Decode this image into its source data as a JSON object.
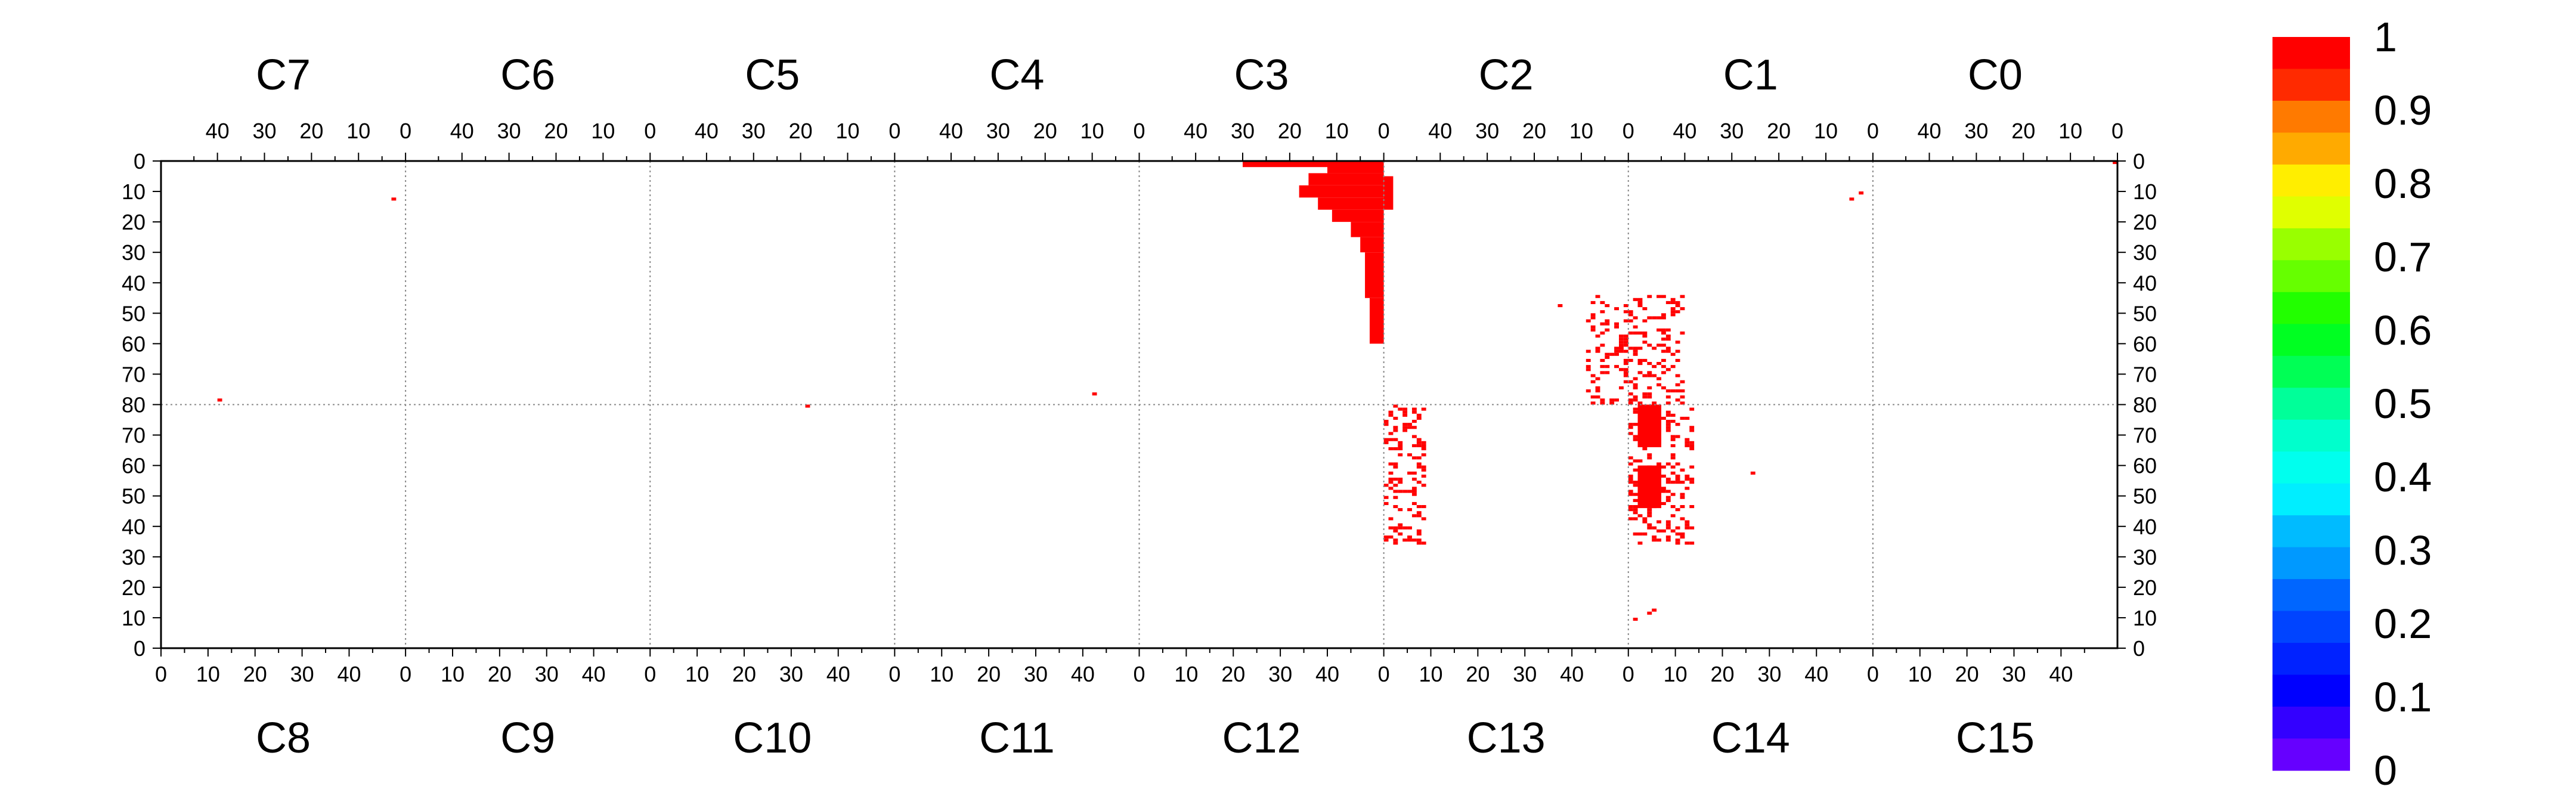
{
  "chart_data": {
    "type": "heatmap",
    "title": "",
    "chips_top": [
      "C7",
      "C6",
      "C5",
      "C4",
      "C3",
      "C2",
      "C1",
      "C0"
    ],
    "chips_bottom": [
      "C8",
      "C9",
      "C10",
      "C11",
      "C12",
      "C13",
      "C14",
      "C15"
    ],
    "top_tick_labels": [
      "40",
      "30",
      "20",
      "10",
      "0"
    ],
    "bottom_tick_labels": [
      "0",
      "10",
      "20",
      "30",
      "40"
    ],
    "y_tick_labels": [
      "0",
      "10",
      "20",
      "30",
      "40",
      "50",
      "60",
      "70",
      "80",
      "70",
      "60",
      "50",
      "40",
      "30",
      "20",
      "10",
      "0"
    ],
    "columns_per_chip": 52,
    "rows_per_half": 80,
    "colorbar": {
      "min": 0,
      "max": 1,
      "labels": [
        "1",
        "0.9",
        "0.8",
        "0.7",
        "0.6",
        "0.5",
        "0.4",
        "0.3",
        "0.2",
        "0.1",
        "0"
      ],
      "colors": [
        "#ff0000",
        "#ff2a00",
        "#ff7a00",
        "#ffaa00",
        "#ffee00",
        "#e0ff00",
        "#99ff00",
        "#66ff00",
        "#22ff00",
        "#00ff22",
        "#00ff55",
        "#00ff99",
        "#00ffcc",
        "#00ffee",
        "#00eeff",
        "#00bbff",
        "#0099ff",
        "#0066ff",
        "#0044ff",
        "#0022ff",
        "#0000ff",
        "#3300ff",
        "#6600ff"
      ]
    },
    "hit_blocks": [
      {
        "chip": "C3",
        "rows": [
          0,
          4
        ],
        "cols": [
          0,
          12
        ],
        "value": 1
      },
      {
        "chip": "C3",
        "rows": [
          4,
          8
        ],
        "cols": [
          0,
          16
        ],
        "value": 1
      },
      {
        "chip": "C3",
        "rows": [
          8,
          12
        ],
        "cols": [
          0,
          18
        ],
        "value": 1
      },
      {
        "chip": "C3",
        "rows": [
          12,
          16
        ],
        "cols": [
          0,
          14
        ],
        "value": 1
      },
      {
        "chip": "C3",
        "rows": [
          16,
          20
        ],
        "cols": [
          0,
          11
        ],
        "value": 1
      },
      {
        "chip": "C3",
        "rows": [
          20,
          25
        ],
        "cols": [
          0,
          7
        ],
        "value": 1
      },
      {
        "chip": "C3",
        "rows": [
          25,
          30
        ],
        "cols": [
          0,
          5
        ],
        "value": 1
      },
      {
        "chip": "C3",
        "rows": [
          30,
          45
        ],
        "cols": [
          0,
          4
        ],
        "value": 1
      },
      {
        "chip": "C3",
        "rows": [
          45,
          60
        ],
        "cols": [
          0,
          3
        ],
        "value": 1
      },
      {
        "chip": "C3",
        "rows": [
          5,
          16
        ],
        "cols": [
          -2,
          0
        ],
        "value": 1
      },
      {
        "chip": "C3",
        "rows": [
          0,
          2
        ],
        "cols": [
          12,
          30
        ],
        "value": 1
      },
      {
        "chip": "C14",
        "rows": [
          66,
          80
        ],
        "cols": [
          2,
          7
        ],
        "value": 1
      },
      {
        "chip": "C14",
        "rows": [
          46,
          60
        ],
        "cols": [
          2,
          7
        ],
        "value": 1
      }
    ],
    "scattered_hits": [
      {
        "chip": "C7",
        "row": 12,
        "col": 2,
        "value": 1
      },
      {
        "chip": "C8",
        "row": 81,
        "col": 12,
        "value": 1
      },
      {
        "chip": "C10",
        "row": 79,
        "col": 33,
        "value": 1
      },
      {
        "chip": "C4",
        "row": 76,
        "col": 9,
        "value": 1
      },
      {
        "chip": "C0",
        "row": 0,
        "col": 0,
        "value": 1
      },
      {
        "chip": "C1",
        "row": 10,
        "col": 2,
        "value": 1
      },
      {
        "chip": "C1",
        "row": 12,
        "col": 4,
        "value": 1
      },
      {
        "chip": "C2",
        "row": 47,
        "col": 14,
        "value": 1
      },
      {
        "chip": "C14",
        "row": 9,
        "col": 1,
        "value": 1
      },
      {
        "chip": "C14",
        "row": 11,
        "col": 4,
        "value": 1
      },
      {
        "chip": "C14",
        "row": 12,
        "col": 5,
        "value": 1
      },
      {
        "chip": "C14",
        "row": 57,
        "col": 26,
        "value": 1
      }
    ],
    "sparse_regions": [
      {
        "chip_left": "C2",
        "chip_right": "C1",
        "rows": [
          44,
          80
        ],
        "col_left_span": 9,
        "col_right_span": 12,
        "density": 0.26
      },
      {
        "chip_left": "C13",
        "chip_right": "C14",
        "rows": [
          34,
          80
        ],
        "col_left_span": 9,
        "col_right_span": 14,
        "density": 0.26
      }
    ]
  }
}
